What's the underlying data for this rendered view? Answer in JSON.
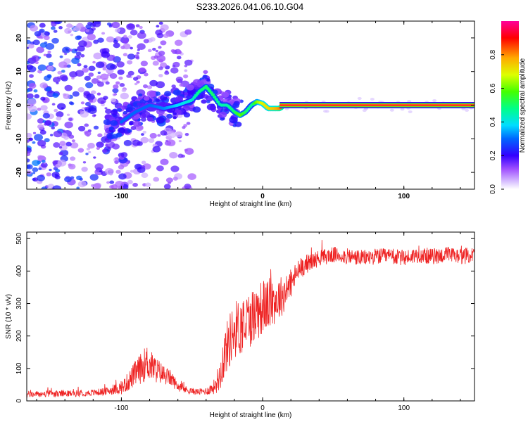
{
  "title": "S233.2026.041.06.10.G04",
  "colors": {
    "snr_line": "#ee2222",
    "frame": "#000000",
    "colormap": [
      "#ffffff",
      "#e8d8ff",
      "#cc99ff",
      "#8800ff",
      "#2200ff",
      "#00ccff",
      "#00ff66",
      "#ccff00",
      "#ffaa00",
      "#ff0000",
      "#ff00aa"
    ]
  },
  "chart_data": [
    {
      "type": "heatmap",
      "name": "spectrogram",
      "xlabel": "Height of straight line (km)",
      "ylabel": "Frequency (Hz)",
      "xlim": [
        -167,
        150
      ],
      "ylim": [
        -25,
        25
      ],
      "xticks": [
        -100,
        0,
        100
      ],
      "xtick_labels": [
        "-100",
        "0",
        "100"
      ],
      "yticks": [
        -20,
        -10,
        0,
        10,
        20
      ],
      "ytick_labels": [
        "-20",
        "-10",
        "0",
        "10",
        "20"
      ],
      "ridge": {
        "x": [
          -100,
          -90,
          -80,
          -70,
          -60,
          -50,
          -45,
          -40,
          -35,
          -30,
          -25,
          -20,
          -16,
          -12,
          -8,
          -4,
          0,
          4,
          8,
          12,
          15,
          150
        ],
        "y": [
          -5,
          -2,
          0,
          -1,
          0,
          1.5,
          4,
          5.5,
          3,
          0,
          0,
          -2,
          -3,
          -2,
          0,
          1,
          0.5,
          -1,
          -1,
          -1,
          0,
          0
        ],
        "amplitude": [
          0.3,
          0.3,
          0.3,
          0.32,
          0.38,
          0.42,
          0.48,
          0.5,
          0.5,
          0.45,
          0.45,
          0.5,
          0.6,
          0.5,
          0.45,
          0.62,
          0.7,
          0.72,
          0.75,
          0.8,
          0.9,
          0.9
        ]
      },
      "colorbar": {
        "label": "Normalized spectral amplitude",
        "range": [
          0,
          1
        ],
        "ticks": [
          0.0,
          0.2,
          0.4,
          0.6,
          0.8
        ],
        "tick_labels": [
          "0.0",
          "0.2",
          "0.4",
          "0.6",
          "0.8"
        ]
      }
    },
    {
      "type": "line",
      "name": "snr",
      "xlabel": "Height of straight line (km)",
      "ylabel": "SNR (10 * v/v)",
      "xlim": [
        -167,
        150
      ],
      "ylim": [
        0,
        520
      ],
      "xticks": [
        -100,
        0,
        100
      ],
      "xtick_labels": [
        "-100",
        "0",
        "100"
      ],
      "yticks": [
        0,
        100,
        200,
        300,
        400,
        500
      ],
      "ytick_labels": [
        "0",
        "100",
        "200",
        "300",
        "400",
        "500"
      ],
      "series": [
        {
          "name": "SNR",
          "x": [
            -167,
            -140,
            -120,
            -110,
            -100,
            -95,
            -90,
            -85,
            -82,
            -80,
            -75,
            -70,
            -65,
            -60,
            -55,
            -50,
            -45,
            -40,
            -35,
            -30,
            -28,
            -25,
            -22,
            -20,
            -15,
            -10,
            -5,
            0,
            5,
            10,
            15,
            20,
            25,
            30,
            40,
            50,
            60,
            70,
            80,
            90,
            100,
            110,
            120,
            130,
            140,
            150
          ],
          "y": [
            20,
            22,
            25,
            30,
            40,
            60,
            85,
            105,
            120,
            110,
            95,
            80,
            70,
            45,
            35,
            30,
            28,
            30,
            40,
            80,
            130,
            170,
            200,
            220,
            230,
            250,
            270,
            290,
            300,
            310,
            330,
            360,
            400,
            420,
            440,
            450,
            445,
            440,
            445,
            445,
            440,
            450,
            445,
            450,
            445,
            450
          ],
          "noise": [
            10,
            10,
            10,
            12,
            20,
            30,
            40,
            50,
            55,
            50,
            40,
            30,
            25,
            15,
            12,
            10,
            10,
            12,
            20,
            50,
            70,
            80,
            90,
            90,
            90,
            90,
            90,
            85,
            80,
            70,
            60,
            45,
            35,
            30,
            25,
            25,
            25,
            25,
            25,
            25,
            25,
            25,
            25,
            25,
            25,
            25
          ]
        }
      ]
    }
  ]
}
